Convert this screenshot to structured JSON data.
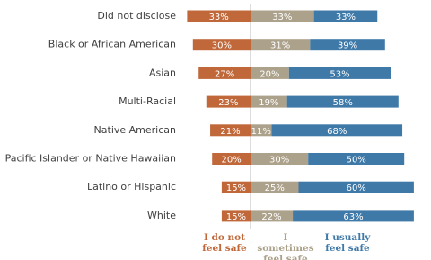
{
  "chart_data": {
    "type": "diverging-bar",
    "categories": [
      "Did not disclose",
      "Black or African American",
      "Asian",
      "Multi-Racial",
      "Native American",
      "Pacific Islander or Native Hawaiian",
      "Latino or Hispanic",
      "White"
    ],
    "series": [
      {
        "name": "I do not feel safe",
        "color": "#c0683a",
        "values": [
          33,
          30,
          27,
          23,
          21,
          20,
          15,
          15
        ],
        "value_labels": [
          "33%",
          "30%",
          "27%",
          "23%",
          "21%",
          "20%",
          "15%",
          "15%"
        ]
      },
      {
        "name": "I sometimes feel safe",
        "color": "#aca18a",
        "values": [
          33,
          31,
          20,
          19,
          11,
          30,
          25,
          22
        ],
        "value_labels": [
          "33%",
          "31%",
          "20%",
          "19%",
          "11%",
          "30%",
          "25%",
          "22%"
        ]
      },
      {
        "name": "I usually feel safe",
        "color": "#3f79a8",
        "values": [
          33,
          39,
          53,
          58,
          68,
          50,
          60,
          63
        ],
        "value_labels": [
          "33%",
          "39%",
          "53%",
          "58%",
          "68%",
          "50%",
          "60%",
          "63%"
        ]
      }
    ]
  }
}
